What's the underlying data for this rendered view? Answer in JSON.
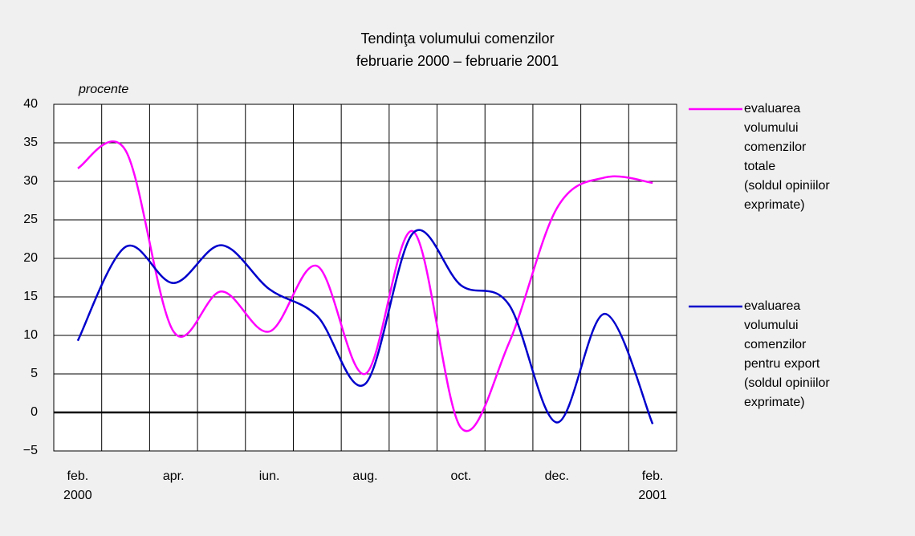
{
  "chart_data": {
    "type": "line",
    "title": "Tendinţa volumului comenzilor\nfebruarie 2000 – februarie 2001",
    "y_label": "procente",
    "categories": [
      "feb.\n2000",
      null,
      "apr.",
      null,
      "iun.",
      null,
      "aug.",
      null,
      "oct.",
      null,
      "dec.",
      null,
      "feb.\n2001"
    ],
    "series": [
      {
        "name": "evaluarea\nvolumului\ncomenzilor\ntotale\n(soldul opiniilor\nexprimate)",
        "color": "#ff00ff",
        "values": [
          31.7,
          34,
          10.5,
          15.7,
          10.5,
          19,
          5,
          23.5,
          -2,
          9,
          26.5,
          30.5,
          29.8
        ]
      },
      {
        "name": "evaluarea\nvolumului\ncomenzilor\npentru export\n(soldul opiniilor\nexprimate)",
        "color": "#0000cc",
        "values": [
          9.3,
          21.5,
          16.8,
          21.7,
          16,
          12.5,
          3.7,
          23.3,
          16.5,
          14,
          -1.3,
          12.8,
          -1.5
        ]
      }
    ],
    "ylim": [
      -5,
      40
    ],
    "yticks": [
      {
        "value": -5,
        "label": "−5"
      },
      0,
      5,
      10,
      15,
      20,
      25,
      30,
      35,
      40
    ],
    "grid": true,
    "legend": "right"
  }
}
